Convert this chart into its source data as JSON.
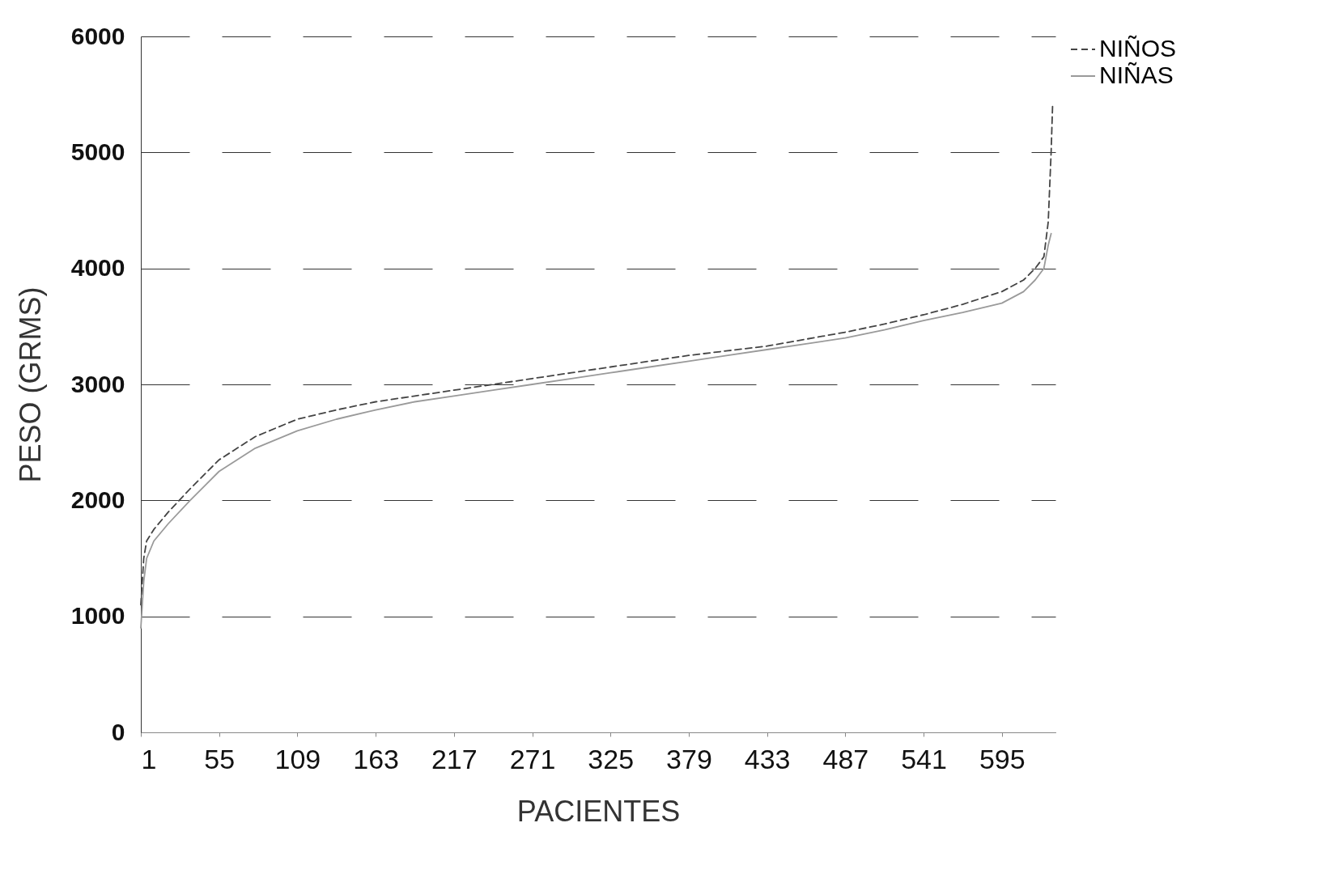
{
  "chart_data": {
    "type": "line",
    "xlabel": "PACIENTES",
    "ylabel": "PESO (GRMS)",
    "xlim": [
      1,
      632
    ],
    "xticks": [
      1,
      55,
      109,
      163,
      217,
      271,
      325,
      379,
      433,
      487,
      541,
      595
    ],
    "ylim": [
      0,
      6000
    ],
    "yticks": [
      0,
      1000,
      2000,
      3000,
      4000,
      5000,
      6000
    ],
    "grid": "y",
    "legend": "right",
    "marker": "none",
    "series": [
      {
        "name": "NIÑOS",
        "color": "#444444",
        "line_style": "dashed",
        "x": [
          1,
          3,
          5,
          10,
          20,
          35,
          55,
          80,
          109,
          136,
          163,
          190,
          217,
          244,
          271,
          298,
          325,
          352,
          379,
          406,
          433,
          460,
          487,
          514,
          541,
          568,
          595,
          610,
          618,
          624,
          627,
          629,
          630
        ],
        "values": [
          1100,
          1500,
          1650,
          1750,
          1900,
          2100,
          2350,
          2550,
          2700,
          2780,
          2850,
          2900,
          2950,
          3000,
          3050,
          3100,
          3150,
          3200,
          3250,
          3290,
          3330,
          3390,
          3450,
          3520,
          3600,
          3690,
          3800,
          3900,
          4000,
          4100,
          4400,
          5000,
          5400
        ]
      },
      {
        "name": "NIÑAS",
        "color": "#9a9a9a",
        "line_style": "solid",
        "x": [
          1,
          3,
          5,
          10,
          20,
          35,
          55,
          80,
          109,
          136,
          163,
          190,
          217,
          244,
          271,
          298,
          325,
          352,
          379,
          406,
          433,
          460,
          487,
          514,
          541,
          568,
          595,
          610,
          618,
          624,
          627,
          629
        ],
        "values": [
          900,
          1300,
          1500,
          1650,
          1800,
          2000,
          2250,
          2450,
          2600,
          2700,
          2780,
          2850,
          2900,
          2950,
          3000,
          3050,
          3100,
          3150,
          3200,
          3250,
          3300,
          3350,
          3400,
          3470,
          3550,
          3620,
          3700,
          3800,
          3900,
          4000,
          4200,
          4300
        ]
      }
    ]
  }
}
